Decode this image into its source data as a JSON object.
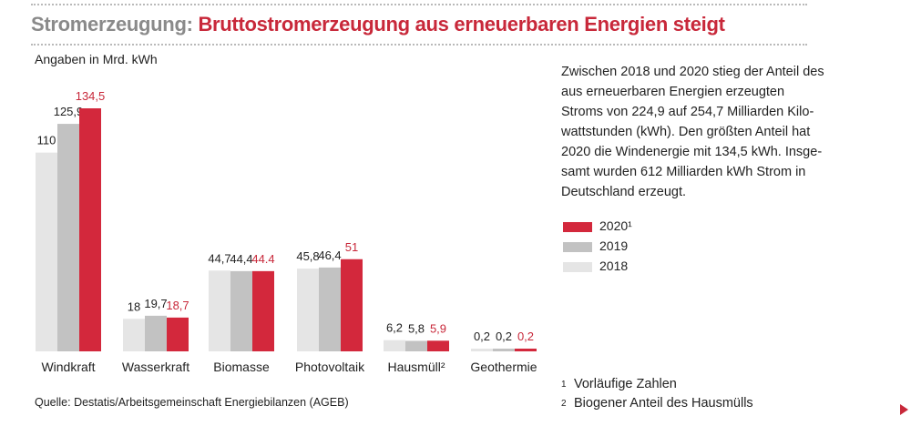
{
  "header": {
    "title_prefix": "Stromerzeugung:",
    "title_main": "Bruttostromerzeugung aus erneuerbaren Energien steigt"
  },
  "unit_label": "Angaben in Mrd. kWh",
  "description": "Zwischen 2018 und 2020 stieg der Anteil des aus erneuerbaren Energien erzeugten Stroms von 224,9 auf 254,7 Milliarden Kilo­wattstunden (kWh). Den größten Anteil hat 2020 die Windenergie mit 134,5 kWh. Insge­samt wurden 612 Milliarden kWh Strom in Deutschland erzeugt.",
  "legend": [
    {
      "label": "2020¹",
      "color": "#d3283c"
    },
    {
      "label": "2019",
      "color": "#c2c2c2"
    },
    {
      "label": "2018",
      "color": "#e5e5e5"
    }
  ],
  "footnotes": [
    {
      "mark": "1",
      "text": "Vorläufige Zahlen"
    },
    {
      "mark": "2",
      "text": "Biogener Anteil des Hausmülls"
    }
  ],
  "source": "Quelle: Destatis/Arbeitsgemeinschaft Energiebilanzen (AGEB)",
  "chart_data": {
    "type": "bar",
    "categories": [
      "Windkraft",
      "Wasserkraft",
      "Biomasse",
      "Photovoltaik",
      "Hausmüll²",
      "Geothermie"
    ],
    "series": [
      {
        "name": "2018",
        "color": "#e5e5e5",
        "values": [
          110,
          18,
          44.7,
          45.8,
          6.2,
          0.2
        ],
        "labels": [
          "110",
          "18",
          "44,7",
          "45,8",
          "6,2",
          "0,2"
        ]
      },
      {
        "name": "2019",
        "color": "#c2c2c2",
        "values": [
          125.9,
          19.7,
          44.4,
          46.4,
          5.8,
          0.2
        ],
        "labels": [
          "125,9",
          "19,7",
          "44,4",
          "46,4",
          "5,8",
          "0,2"
        ]
      },
      {
        "name": "2020¹",
        "color": "#d3283c",
        "values": [
          134.5,
          18.7,
          44.4,
          51,
          5.9,
          0.2
        ],
        "labels": [
          "134,5",
          "18,7",
          "44.4",
          "51",
          "5,9",
          "0,2"
        ]
      }
    ],
    "label_colors": [
      "#222222",
      "#222222",
      "#c8283a"
    ],
    "ylabel": "Angaben in Mrd. kWh",
    "ylim": [
      0,
      134.5
    ],
    "grid": false,
    "legend_position": "right"
  }
}
